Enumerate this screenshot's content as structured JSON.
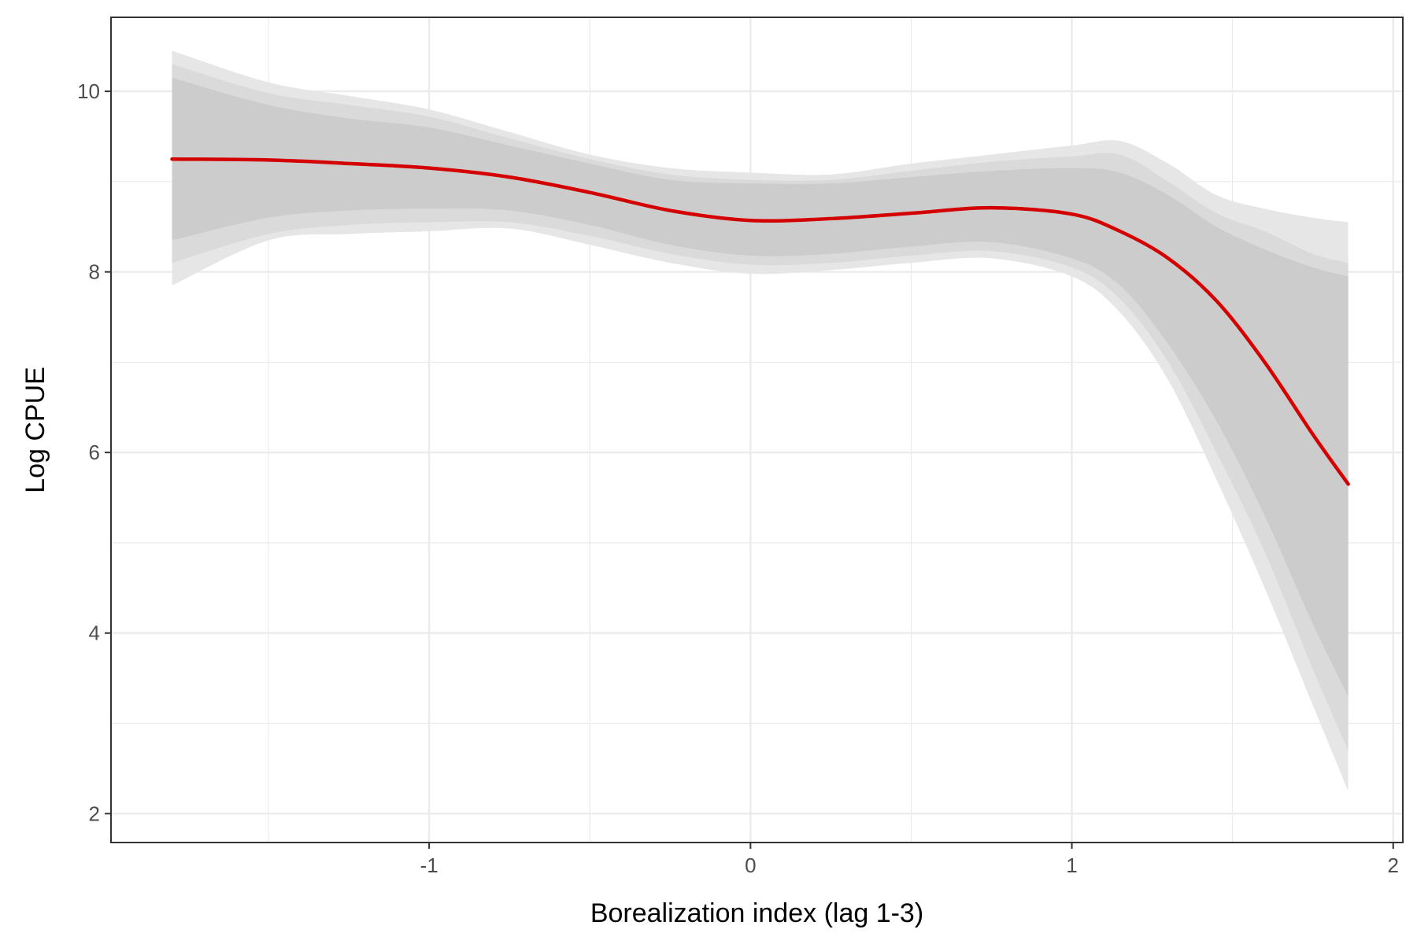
{
  "chart_data": {
    "type": "line",
    "title": "",
    "xlabel": "Borealization index (lag 1-3)",
    "ylabel": "Log CPUE",
    "xlim": [
      -1.99,
      2.03
    ],
    "ylim": [
      1.68,
      10.82
    ],
    "x_ticks": [
      -1,
      0,
      1,
      2
    ],
    "x_tick_labels": [
      "-1",
      "0",
      "1",
      "2"
    ],
    "y_ticks": [
      2,
      4,
      6,
      8,
      10
    ],
    "y_tick_labels": [
      "2",
      "4",
      "6",
      "8",
      "10"
    ],
    "grid": true,
    "series": [
      {
        "name": "fit",
        "color": "#d40000",
        "x": [
          -1.8,
          -1.5,
          -1.25,
          -1.0,
          -0.75,
          -0.5,
          -0.25,
          0.0,
          0.25,
          0.5,
          0.75,
          1.0,
          1.15,
          1.3,
          1.45,
          1.6,
          1.75,
          1.86
        ],
        "y": [
          9.25,
          9.24,
          9.2,
          9.15,
          9.05,
          8.88,
          8.68,
          8.57,
          8.59,
          8.65,
          8.71,
          8.64,
          8.45,
          8.15,
          7.68,
          7.0,
          6.2,
          5.65
        ]
      }
    ],
    "ribbons": [
      {
        "name": "outer-interval",
        "color": "#e6e6e6",
        "x": [
          -1.8,
          -1.5,
          -1.25,
          -1.0,
          -0.75,
          -0.5,
          -0.25,
          0.0,
          0.25,
          0.5,
          0.75,
          1.0,
          1.15,
          1.3,
          1.45,
          1.6,
          1.75,
          1.86
        ],
        "lower": [
          7.85,
          8.35,
          8.42,
          8.45,
          8.48,
          8.3,
          8.1,
          7.98,
          8.02,
          8.1,
          8.15,
          7.95,
          7.55,
          6.8,
          5.7,
          4.5,
          3.2,
          2.25
        ],
        "upper": [
          10.45,
          10.1,
          9.95,
          9.8,
          9.55,
          9.3,
          9.15,
          9.1,
          9.08,
          9.2,
          9.3,
          9.4,
          9.45,
          9.2,
          8.85,
          8.7,
          8.6,
          8.55
        ]
      },
      {
        "name": "mid-interval",
        "color": "#dadada",
        "x": [
          -1.8,
          -1.5,
          -1.25,
          -1.0,
          -0.75,
          -0.5,
          -0.25,
          0.0,
          0.25,
          0.5,
          0.75,
          1.0,
          1.15,
          1.3,
          1.45,
          1.6,
          1.75,
          1.86
        ],
        "lower": [
          8.1,
          8.42,
          8.52,
          8.55,
          8.55,
          8.4,
          8.2,
          8.08,
          8.1,
          8.18,
          8.23,
          8.05,
          7.7,
          7.0,
          6.0,
          4.9,
          3.6,
          2.7
        ],
        "upper": [
          10.3,
          9.98,
          9.85,
          9.72,
          9.48,
          9.25,
          9.08,
          9.02,
          9.02,
          9.12,
          9.22,
          9.28,
          9.3,
          9.0,
          8.65,
          8.45,
          8.2,
          8.1
        ]
      },
      {
        "name": "inner-interval",
        "color": "#cccccc",
        "x": [
          -1.8,
          -1.5,
          -1.25,
          -1.0,
          -0.75,
          -0.5,
          -0.25,
          0.0,
          0.25,
          0.5,
          0.75,
          1.0,
          1.15,
          1.3,
          1.45,
          1.6,
          1.75,
          1.86
        ],
        "lower": [
          8.35,
          8.6,
          8.68,
          8.7,
          8.68,
          8.52,
          8.3,
          8.18,
          8.2,
          8.28,
          8.33,
          8.15,
          7.85,
          7.2,
          6.35,
          5.3,
          4.1,
          3.3
        ],
        "upper": [
          10.15,
          9.85,
          9.7,
          9.6,
          9.4,
          9.2,
          9.02,
          8.98,
          8.98,
          9.05,
          9.12,
          9.15,
          9.1,
          8.85,
          8.5,
          8.25,
          8.05,
          7.95
        ]
      }
    ]
  }
}
